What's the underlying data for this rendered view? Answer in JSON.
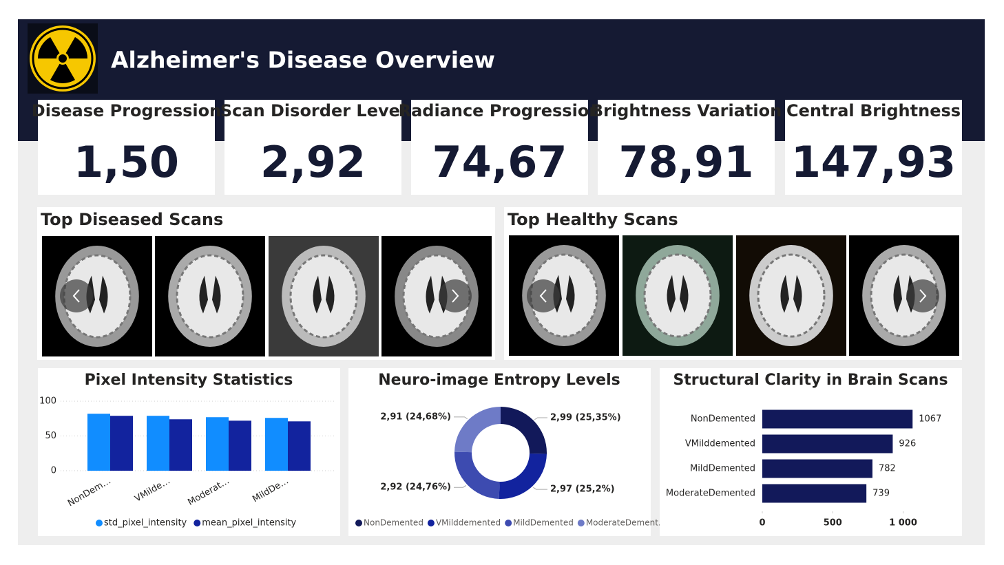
{
  "header": {
    "title": "Alzheimer's Disease Overview"
  },
  "kpis": [
    {
      "label": "Disease Progression",
      "value": "1,50"
    },
    {
      "label": "Scan Disorder Level",
      "value": "2,92"
    },
    {
      "label": "Radiance Progression",
      "value": "74,67"
    },
    {
      "label": "Brightness Variation",
      "value": "78,91"
    },
    {
      "label": "Central Brightness",
      "value": "147,93"
    }
  ],
  "galleries": [
    {
      "title": "Top Diseased Scans"
    },
    {
      "title": "Top Healthy Scans"
    }
  ],
  "chart_data": [
    {
      "type": "bar",
      "title": "Pixel Intensity Statistics",
      "categories": [
        "NonDem…",
        "VMilde…",
        "Moderat…",
        "MildDe…"
      ],
      "series": [
        {
          "name": "std_pixel_intensity",
          "color": "#118dff",
          "values": [
            82,
            79,
            77,
            76
          ]
        },
        {
          "name": "mean_pixel_intensity",
          "color": "#12239e",
          "values": [
            79,
            74,
            72,
            71
          ]
        }
      ],
      "ylim": [
        0,
        100
      ],
      "yticks": [
        0,
        50,
        100
      ],
      "grid": true,
      "legend": "bottom"
    },
    {
      "type": "donut",
      "title": "Neuro-image Entropy Levels",
      "categories": [
        "NonDemented",
        "VMilddemented",
        "MildDemented",
        "ModerateDement…"
      ],
      "values": [
        2.99,
        2.97,
        2.92,
        2.91
      ],
      "value_labels": [
        "2,99 (25,35%)",
        "2,97 (25,2%)",
        "2,92 (24,76%)",
        "2,91 (24,68%)"
      ],
      "colors": [
        "#12195a",
        "#12239e",
        "#3d4bb0",
        "#6e7bc7"
      ],
      "legend": "bottom"
    },
    {
      "type": "bar",
      "orientation": "horizontal",
      "title": "Structural Clarity in Brain Scans",
      "categories": [
        "NonDemented",
        "VMilddemented",
        "MildDemented",
        "ModerateDemented"
      ],
      "values": [
        1067,
        926,
        782,
        739
      ],
      "color": "#12195a",
      "xlim": [
        0,
        1100
      ],
      "xticks": [
        0,
        500,
        {
          "value": 1000,
          "label": "1 000"
        }
      ]
    }
  ]
}
